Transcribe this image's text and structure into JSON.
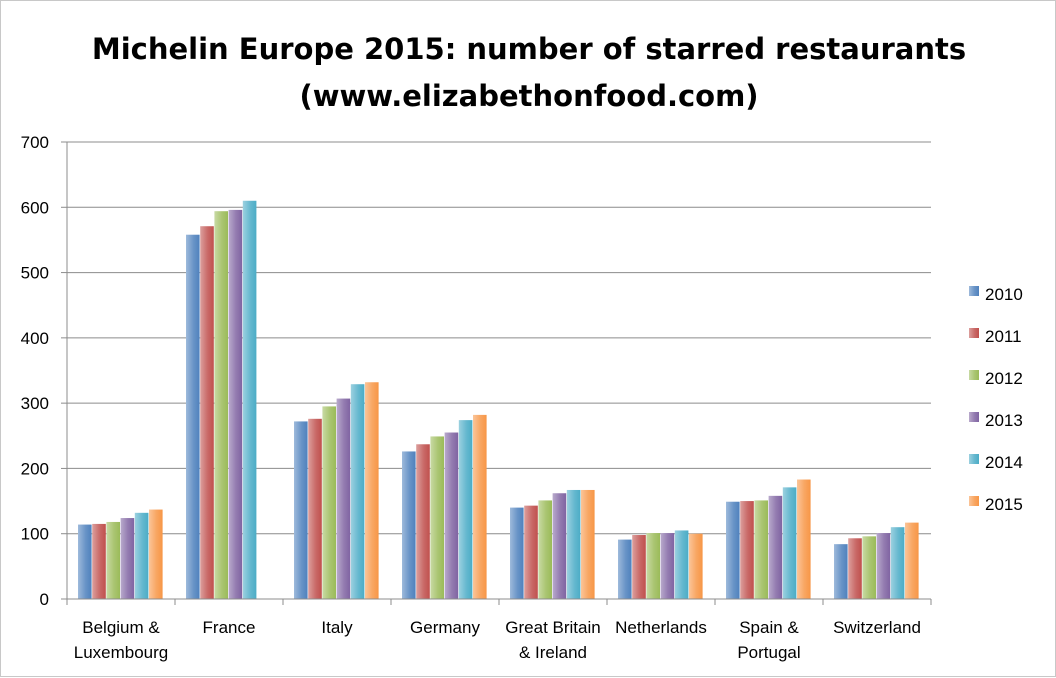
{
  "chart_data": {
    "type": "bar",
    "title_lines": [
      "Michelin Europe 2015: number of starred restaurants",
      "(www.elizabethonfood.com)"
    ],
    "xlabel": "",
    "ylabel": "",
    "ylim": [
      0,
      700
    ],
    "yticks": [
      0,
      100,
      200,
      300,
      400,
      500,
      600,
      700
    ],
    "grid": true,
    "legend_position": "right",
    "categories": [
      [
        "Belgium &",
        "Luxembourg"
      ],
      [
        "France"
      ],
      [
        "Italy"
      ],
      [
        "Germany"
      ],
      [
        "Great Britain",
        "& Ireland"
      ],
      [
        "Netherlands"
      ],
      [
        "Spain &",
        "Portugal"
      ],
      [
        "Switzerland"
      ]
    ],
    "series": [
      {
        "name": "2010",
        "color": "#4f81bd",
        "values": [
          114,
          558,
          272,
          226,
          140,
          91,
          149,
          84
        ]
      },
      {
        "name": "2011",
        "color": "#c0504d",
        "values": [
          115,
          571,
          276,
          237,
          143,
          98,
          150,
          93
        ]
      },
      {
        "name": "2012",
        "color": "#9bbb59",
        "values": [
          118,
          594,
          295,
          249,
          151,
          101,
          151,
          96
        ]
      },
      {
        "name": "2013",
        "color": "#8064a2",
        "values": [
          124,
          596,
          307,
          255,
          162,
          101,
          158,
          101
        ]
      },
      {
        "name": "2014",
        "color": "#4bacc6",
        "values": [
          132,
          610,
          329,
          274,
          167,
          105,
          171,
          110
        ]
      },
      {
        "name": "2015",
        "color": "#f79646",
        "values": [
          137,
          0,
          332,
          282,
          167,
          100,
          183,
          117
        ]
      }
    ]
  }
}
